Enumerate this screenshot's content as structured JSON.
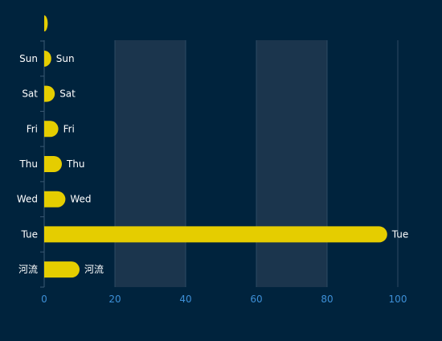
{
  "colors": {
    "background": "#00233d",
    "bar": "#e5cd00",
    "axis_label": "#ffffff",
    "value_axis_label": "#3d8fd6",
    "split_area_alt": "#1b354d",
    "grid_line": "#2e4a63"
  },
  "chart_data": {
    "type": "bar",
    "orientation": "horizontal",
    "bar_style": "rounded-end",
    "categories": [
      "河流",
      "Tue",
      "Wed",
      "Thu",
      "Fri",
      "Sat",
      "Sun"
    ],
    "series": [
      {
        "values": [
          10,
          97,
          6,
          5,
          4,
          3,
          2
        ]
      }
    ],
    "extra_mark_value": 1,
    "data_labels": [
      "河流",
      "Tue",
      "Wed",
      "Thu",
      "Fri",
      "Sat",
      "Sun"
    ],
    "xlim": [
      0,
      100
    ],
    "xticks": [
      0,
      20,
      40,
      60,
      80,
      100
    ],
    "xlabel": "",
    "ylabel": "",
    "title": "",
    "grid": true,
    "split_area": true,
    "legend": "none"
  }
}
